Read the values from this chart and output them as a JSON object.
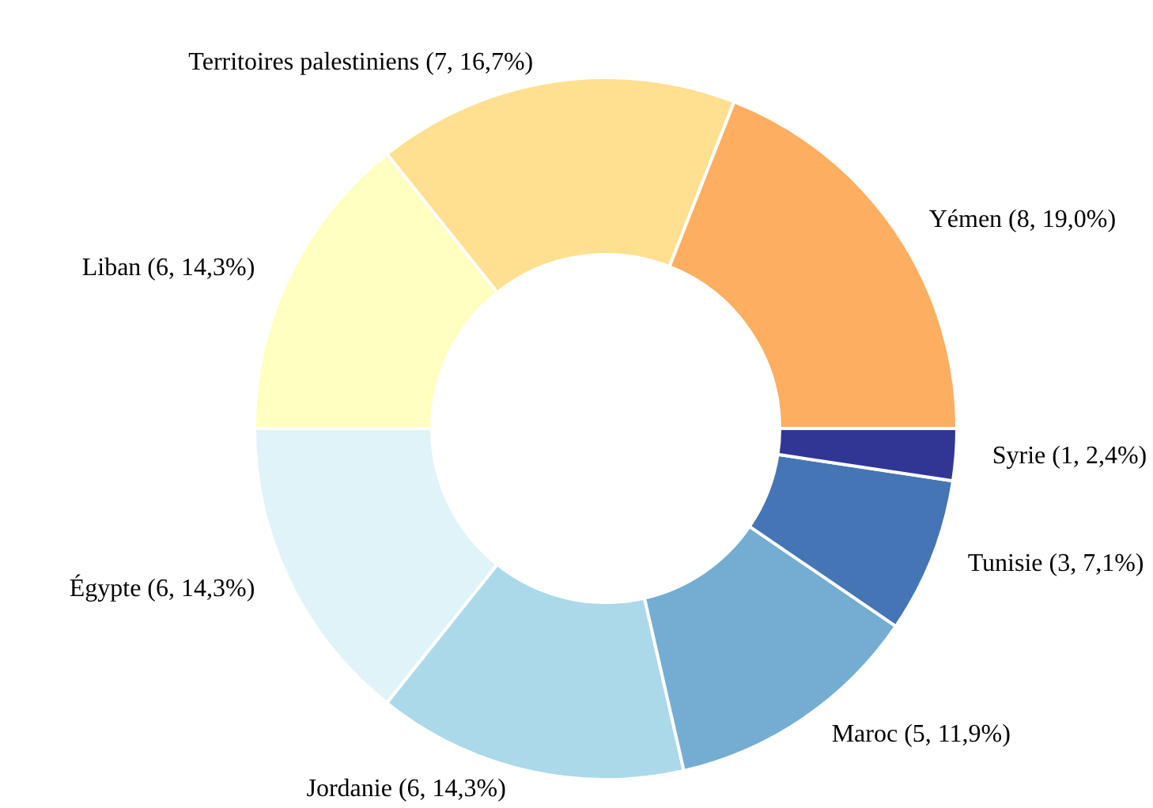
{
  "chart_data": {
    "type": "donut",
    "categories": [
      "Yémen",
      "Territoires palestiniens",
      "Liban",
      "Égypte",
      "Jordanie",
      "Maroc",
      "Tunisie",
      "Syrie"
    ],
    "values": [
      8,
      7,
      6,
      6,
      6,
      5,
      3,
      1
    ],
    "value_labels": [
      "(8, 19,0%)",
      "(7, 16,7%)",
      "(6, 14,3%)",
      "(6, 14,3%)",
      "(6, 14,3%)",
      "(5, 11,9%)",
      "(3, 7,1%)",
      "(1, 2,4%)"
    ],
    "colors": [
      "#fdae61",
      "#fee090",
      "#ffffbf",
      "#e0f3f8",
      "#abd9e9",
      "#74add1",
      "#4575b4",
      "#313695"
    ],
    "legend": false
  }
}
